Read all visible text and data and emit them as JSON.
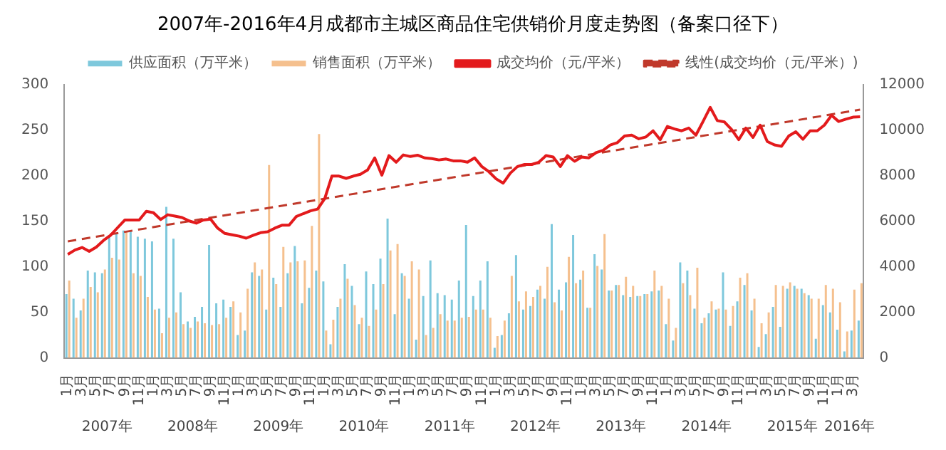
{
  "chart_data": {
    "type": "bar",
    "title": "2007年-2016年4月成都市主城区商品住宅供销价月度走势图（备案口径下）",
    "categories": [
      "1月",
      null,
      "3月",
      null,
      "5月",
      null,
      "7月",
      null,
      "9月",
      null,
      "11月",
      null,
      "1月",
      null,
      "3月",
      null,
      "5月",
      null,
      "7月",
      null,
      "9月",
      null,
      "11月",
      null,
      "1月",
      null,
      "3月",
      null,
      "5月",
      null,
      "7月",
      null,
      "9月",
      null,
      "11月",
      null,
      "1月",
      null,
      "3月",
      null,
      "5月",
      null,
      "7月",
      null,
      "9月",
      null,
      "11月",
      null,
      "1月",
      null,
      "3月",
      null,
      "5月",
      null,
      "7月",
      null,
      "9月",
      null,
      "11月",
      null,
      "1月",
      null,
      "3月",
      null,
      "5月",
      null,
      "7月",
      null,
      "9月",
      null,
      "11月",
      null,
      "1月",
      null,
      "3月",
      null,
      "5月",
      null,
      "7月",
      null,
      "9月",
      null,
      "11月",
      null,
      "1月",
      null,
      "3月",
      null,
      "5月",
      null,
      "7月",
      null,
      "9月",
      null,
      "11月",
      null,
      "1月",
      null,
      "3月",
      null,
      "5月",
      null,
      "7月",
      null,
      "9月",
      null,
      "11月",
      null,
      "1月",
      null,
      "3月",
      null
    ],
    "series": [
      {
        "name": "供应面积（万平米）",
        "color": "#7ec8dc",
        "values": [
          70,
          65,
          52,
          96,
          94,
          93,
          135,
          137,
          140,
          140,
          133,
          131,
          128,
          54,
          166,
          131,
          72,
          40,
          45,
          56,
          124,
          60,
          64,
          56,
          25,
          30,
          94,
          90,
          53,
          88,
          56,
          93,
          123,
          60,
          77,
          96,
          84,
          15,
          56,
          103,
          79,
          37,
          95,
          81,
          109,
          153,
          48,
          93,
          65,
          20,
          68,
          107,
          71,
          69,
          64,
          85,
          146,
          68,
          85,
          106,
          11,
          25,
          49,
          113,
          53,
          57,
          75,
          65,
          147,
          75,
          83,
          135,
          86,
          55,
          114,
          97,
          74,
          80,
          69,
          67,
          68,
          70,
          73,
          74,
          37,
          19,
          105,
          96,
          54,
          38,
          49,
          53,
          94,
          35,
          62,
          80,
          52,
          12,
          26,
          56,
          34,
          76,
          79,
          76,
          69,
          21,
          58,
          50,
          31,
          7,
          30,
          41
        ]
      },
      {
        "name": "销售面积（万平米）",
        "color": "#f5c08e",
        "values": [
          85,
          44,
          65,
          78,
          72,
          97,
          110,
          108,
          138,
          93,
          90,
          67,
          53,
          27,
          44,
          50,
          37,
          33,
          40,
          38,
          36,
          37,
          44,
          62,
          50,
          76,
          105,
          97,
          212,
          81,
          122,
          105,
          106,
          107,
          145,
          246,
          30,
          42,
          65,
          87,
          58,
          44,
          35,
          53,
          81,
          118,
          125,
          90,
          106,
          97,
          25,
          33,
          48,
          41,
          41,
          44,
          45,
          53,
          53,
          44,
          24,
          41,
          90,
          62,
          73,
          67,
          79,
          100,
          61,
          52,
          111,
          82,
          96,
          55,
          101,
          136,
          74,
          80,
          89,
          79,
          68,
          70,
          96,
          79,
          65,
          33,
          82,
          69,
          99,
          44,
          62,
          54,
          53,
          57,
          88,
          93,
          65,
          38,
          50,
          80,
          79,
          83,
          76,
          71,
          65,
          65,
          80,
          76,
          61,
          29,
          75,
          82
        ]
      },
      {
        "name": "成交均价（元/平米）",
        "type": "line",
        "axis": "y2",
        "color": "#e31a1c",
        "values": [
          4550,
          4740,
          4850,
          4680,
          4870,
          5160,
          5390,
          5730,
          6060,
          6060,
          6060,
          6440,
          6380,
          6080,
          6290,
          6230,
          6170,
          6020,
          5920,
          6060,
          6100,
          5700,
          5470,
          5410,
          5350,
          5260,
          5390,
          5500,
          5540,
          5700,
          5830,
          5830,
          6210,
          6340,
          6460,
          6540,
          7000,
          7990,
          7990,
          7890,
          7990,
          8070,
          8260,
          8790,
          8030,
          8890,
          8600,
          8920,
          8850,
          8910,
          8790,
          8760,
          8700,
          8740,
          8660,
          8660,
          8600,
          8790,
          8410,
          8180,
          7870,
          7680,
          8120,
          8410,
          8500,
          8500,
          8600,
          8890,
          8830,
          8410,
          8890,
          8640,
          8830,
          8790,
          9020,
          9120,
          9360,
          9460,
          9750,
          9790,
          9630,
          9710,
          9980,
          9590,
          10170,
          10060,
          9980,
          10100,
          9790,
          10390,
          11010,
          10430,
          10370,
          10040,
          9590,
          10100,
          9690,
          10230,
          9510,
          9360,
          9300,
          9750,
          9940,
          9610,
          9980,
          9980,
          10230,
          10660,
          10390,
          10490,
          10580,
          10600
        ]
      },
      {
        "name": "线性(成交均价（元/平米）)",
        "type": "line",
        "axis": "y2",
        "line_style": "dashed",
        "color": "#c0392b",
        "values": [
          5120,
          null,
          null,
          null,
          null,
          null,
          null,
          null,
          null,
          null,
          null,
          null,
          null,
          null,
          null,
          null,
          null,
          null,
          null,
          null,
          null,
          null,
          null,
          null,
          null,
          null,
          null,
          null,
          null,
          null,
          null,
          null,
          null,
          null,
          null,
          null,
          null,
          null,
          null,
          null,
          null,
          null,
          null,
          null,
          null,
          null,
          null,
          null,
          null,
          null,
          null,
          null,
          null,
          null,
          null,
          null,
          null,
          null,
          null,
          null,
          null,
          null,
          null,
          null,
          null,
          null,
          null,
          null,
          null,
          null,
          null,
          null,
          null,
          null,
          null,
          null,
          null,
          null,
          null,
          null,
          null,
          null,
          null,
          null,
          null,
          null,
          null,
          null,
          null,
          null,
          null,
          null,
          null,
          null,
          null,
          null,
          null,
          null,
          null,
          null,
          null,
          null,
          null,
          null,
          null,
          null,
          null,
          null,
          null,
          null,
          null,
          10910
        ]
      }
    ],
    "ylim": [
      0,
      300
    ],
    "yticks": [
      0,
      50,
      100,
      150,
      200,
      250,
      300
    ],
    "y2lim": [
      0,
      12000
    ],
    "y2ticks": [
      0,
      2000,
      4000,
      6000,
      8000,
      10000,
      12000
    ],
    "annotations": [
      "2007年",
      "2008年",
      "2009年",
      "2010年",
      "2011年",
      "2012年",
      "2013年",
      "2014年",
      "2015年",
      "2016年"
    ],
    "legend": "top",
    "grid": false,
    "marker": "none"
  }
}
